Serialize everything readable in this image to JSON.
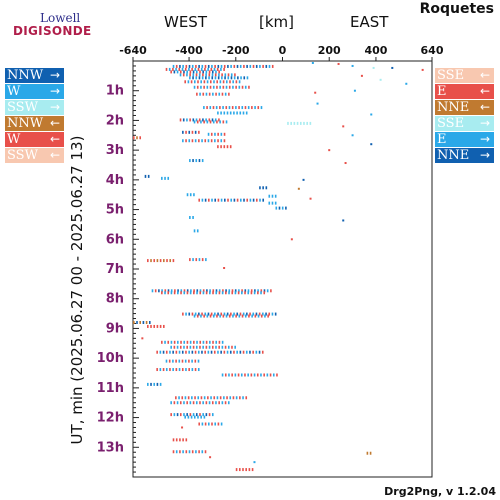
{
  "header": {
    "logo_top": "Lowell",
    "logo_bottom": "DIGISONDE",
    "station": "Roquetes",
    "west_label": "WEST",
    "unit_label": "[km]",
    "east_label": "EAST"
  },
  "footer": {
    "version": "Drg2Png, v 1.2.04"
  },
  "legend_left": [
    {
      "label": "NNW",
      "arrow": "→",
      "color": "#1060b0"
    },
    {
      "label": "W",
      "arrow": "→",
      "color": "#2aa8e8"
    },
    {
      "label": "SSW",
      "arrow": "→",
      "color": "#a8ecf0"
    },
    {
      "label": "NNW",
      "arrow": "←",
      "color": "#c07a30"
    },
    {
      "label": "W",
      "arrow": "←",
      "color": "#e8504a"
    },
    {
      "label": "SSW",
      "arrow": "←",
      "color": "#f8c8b0"
    }
  ],
  "legend_right": [
    {
      "label": "SSE",
      "arrow": "←",
      "color": "#f8c8b0"
    },
    {
      "label": "E",
      "arrow": "←",
      "color": "#e8504a"
    },
    {
      "label": "NNE",
      "arrow": "←",
      "color": "#c07a30"
    },
    {
      "label": "SSE",
      "arrow": "→",
      "color": "#a8ecf0"
    },
    {
      "label": "E",
      "arrow": "→",
      "color": "#2aa8e8"
    },
    {
      "label": "NNE",
      "arrow": "→",
      "color": "#1060b0"
    }
  ],
  "chart_data": {
    "type": "scatter",
    "title": "",
    "xlabel": "[km]",
    "ylabel": "UT, min (2025.06.27 00 - 2025.06.27 13)",
    "xlim": [
      -640,
      640
    ],
    "ylim_minutes": [
      0,
      840
    ],
    "x_ticks": [
      -640,
      -400,
      -200,
      0,
      200,
      400,
      640
    ],
    "x_tick_labels": [
      "-640",
      "-400",
      "-200",
      "0",
      "200",
      "400",
      "640"
    ],
    "y_ticks_min": [
      60,
      120,
      180,
      240,
      300,
      360,
      420,
      480,
      540,
      600,
      660,
      720,
      780
    ],
    "y_tick_labels": [
      "1h",
      "2h",
      "3h",
      "4h",
      "5h",
      "6h",
      "7h",
      "8h",
      "9h",
      "10h",
      "11h",
      "12h",
      "13h"
    ],
    "grid": false,
    "tick_label_color": "#7a1f6e",
    "segments": [
      {
        "t": 10,
        "x1": -470,
        "x2": -40,
        "colors": [
          "#2aa8e8",
          "#e8504a",
          "#1060b0"
        ]
      },
      {
        "t": 16,
        "x1": -500,
        "x2": -250,
        "colors": [
          "#e8504a",
          "#2aa8e8"
        ]
      },
      {
        "t": 21,
        "x1": -480,
        "x2": -270,
        "colors": [
          "#e8504a",
          "#1060b0",
          "#2aa8e8"
        ]
      },
      {
        "t": 27,
        "x1": -440,
        "x2": -200,
        "colors": [
          "#2aa8e8",
          "#e8504a"
        ]
      },
      {
        "t": 33,
        "x1": -400,
        "x2": -140,
        "colors": [
          "#2aa8e8",
          "#1060b0"
        ]
      },
      {
        "t": 41,
        "x1": -420,
        "x2": -180,
        "colors": [
          "#e8504a",
          "#2aa8e8"
        ]
      },
      {
        "t": 52,
        "x1": -380,
        "x2": -140,
        "colors": [
          "#2aa8e8",
          "#e8504a"
        ]
      },
      {
        "t": 66,
        "x1": -370,
        "x2": -230,
        "colors": [
          "#e8504a",
          "#2aa8e8"
        ]
      },
      {
        "t": 93,
        "x1": -340,
        "x2": -80,
        "colors": [
          "#2aa8e8",
          "#e8504a"
        ]
      },
      {
        "t": 104,
        "x1": -280,
        "x2": -150,
        "colors": [
          "#2aa8e8"
        ]
      },
      {
        "t": 118,
        "x1": -440,
        "x2": -270,
        "colors": [
          "#e8504a",
          "#1060b0",
          "#2aa8e8"
        ]
      },
      {
        "t": 122,
        "x1": -380,
        "x2": -230,
        "colors": [
          "#2aa8e8",
          "#e8504a"
        ]
      },
      {
        "t": 125,
        "x1": 20,
        "x2": 120,
        "colors": [
          "#a8ecf0"
        ]
      },
      {
        "t": 143,
        "x1": -430,
        "x2": -360,
        "colors": [
          "#1060b0",
          "#e8504a"
        ]
      },
      {
        "t": 147,
        "x1": -320,
        "x2": -240,
        "colors": [
          "#2aa8e8",
          "#e8504a"
        ]
      },
      {
        "t": 154,
        "x1": -640,
        "x2": -600,
        "colors": [
          "#e8504a",
          "#c07a30"
        ]
      },
      {
        "t": 160,
        "x1": -430,
        "x2": -250,
        "colors": [
          "#2aa8e8",
          "#e8504a"
        ]
      },
      {
        "t": 172,
        "x1": -280,
        "x2": -220,
        "colors": [
          "#e8504a"
        ]
      },
      {
        "t": 200,
        "x1": -400,
        "x2": -340,
        "colors": [
          "#2aa8e8",
          "#1060b0"
        ]
      },
      {
        "t": 232,
        "x1": -590,
        "x2": -570,
        "colors": [
          "#1060b0"
        ]
      },
      {
        "t": 236,
        "x1": -520,
        "x2": -480,
        "colors": [
          "#2aa8e8"
        ]
      },
      {
        "t": 255,
        "x1": -100,
        "x2": -60,
        "colors": [
          "#1060b0"
        ]
      },
      {
        "t": 269,
        "x1": -410,
        "x2": -380,
        "colors": [
          "#2aa8e8"
        ]
      },
      {
        "t": 272,
        "x1": -60,
        "x2": -20,
        "colors": [
          "#2aa8e8"
        ]
      },
      {
        "t": 280,
        "x1": -360,
        "x2": -80,
        "colors": [
          "#e8504a",
          "#2aa8e8",
          "#1060b0"
        ]
      },
      {
        "t": 286,
        "x1": -60,
        "x2": -20,
        "colors": [
          "#2aa8e8"
        ]
      },
      {
        "t": 296,
        "x1": -30,
        "x2": 20,
        "colors": [
          "#2aa8e8",
          "#1060b0"
        ]
      },
      {
        "t": 315,
        "x1": -400,
        "x2": -380,
        "colors": [
          "#2aa8e8"
        ]
      },
      {
        "t": 342,
        "x1": -380,
        "x2": -360,
        "colors": [
          "#2aa8e8"
        ]
      },
      {
        "t": 402,
        "x1": -580,
        "x2": -470,
        "colors": [
          "#e8504a",
          "#c07a30"
        ]
      },
      {
        "t": 400,
        "x1": -400,
        "x2": -320,
        "colors": [
          "#e8504a",
          "#2aa8e8"
        ]
      },
      {
        "t": 463,
        "x1": -560,
        "x2": -40,
        "colors": [
          "#2aa8e8",
          "#e8504a",
          "#1060b0"
        ]
      },
      {
        "t": 467,
        "x1": -520,
        "x2": -80,
        "colors": [
          "#e8504a",
          "#2aa8e8"
        ]
      },
      {
        "t": 510,
        "x1": -430,
        "x2": -20,
        "colors": [
          "#e8504a",
          "#2aa8e8",
          "#1060b0"
        ]
      },
      {
        "t": 514,
        "x1": -380,
        "x2": -60,
        "colors": [
          "#2aa8e8",
          "#e8504a"
        ]
      },
      {
        "t": 527,
        "x1": -640,
        "x2": -560,
        "colors": [
          "#c07a30",
          "#1060b0"
        ]
      },
      {
        "t": 535,
        "x1": -580,
        "x2": -510,
        "colors": [
          "#e8504a"
        ]
      },
      {
        "t": 567,
        "x1": -520,
        "x2": -250,
        "colors": [
          "#e8504a",
          "#2aa8e8"
        ]
      },
      {
        "t": 577,
        "x1": -480,
        "x2": -200,
        "colors": [
          "#2aa8e8",
          "#e8504a"
        ]
      },
      {
        "t": 587,
        "x1": -540,
        "x2": -80,
        "colors": [
          "#e8504a",
          "#2aa8e8",
          "#1060b0"
        ]
      },
      {
        "t": 605,
        "x1": -500,
        "x2": -350,
        "colors": [
          "#2aa8e8",
          "#e8504a"
        ]
      },
      {
        "t": 622,
        "x1": -540,
        "x2": -350,
        "colors": [
          "#e8504a",
          "#2aa8e8"
        ]
      },
      {
        "t": 633,
        "x1": -260,
        "x2": -20,
        "colors": [
          "#2aa8e8",
          "#e8504a"
        ]
      },
      {
        "t": 652,
        "x1": -580,
        "x2": -520,
        "colors": [
          "#2aa8e8",
          "#1060b0"
        ]
      },
      {
        "t": 679,
        "x1": -460,
        "x2": -150,
        "colors": [
          "#e8504a",
          "#2aa8e8"
        ]
      },
      {
        "t": 689,
        "x1": -480,
        "x2": -220,
        "colors": [
          "#2aa8e8",
          "#e8504a"
        ]
      },
      {
        "t": 713,
        "x1": -480,
        "x2": -300,
        "colors": [
          "#e8504a",
          "#2aa8e8",
          "#1060b0"
        ]
      },
      {
        "t": 718,
        "x1": -420,
        "x2": -330,
        "colors": [
          "#2aa8e8"
        ]
      },
      {
        "t": 732,
        "x1": -360,
        "x2": -260,
        "colors": [
          "#e8504a",
          "#2aa8e8"
        ]
      },
      {
        "t": 764,
        "x1": -470,
        "x2": -410,
        "colors": [
          "#e8504a"
        ]
      },
      {
        "t": 788,
        "x1": -470,
        "x2": -320,
        "colors": [
          "#e8504a",
          "#2aa8e8"
        ]
      },
      {
        "t": 791,
        "x1": 360,
        "x2": 380,
        "colors": [
          "#c07a30"
        ]
      },
      {
        "t": 824,
        "x1": -200,
        "x2": -120,
        "colors": [
          "#e8504a"
        ]
      }
    ],
    "points": [
      {
        "t": 4,
        "x": 130,
        "color": "#2aa8e8"
      },
      {
        "t": 6,
        "x": 240,
        "color": "#e8504a"
      },
      {
        "t": 10,
        "x": 300,
        "color": "#2aa8e8"
      },
      {
        "t": 14,
        "x": 390,
        "color": "#a8ecf0"
      },
      {
        "t": 14,
        "x": 470,
        "color": "#1060b0"
      },
      {
        "t": 18,
        "x": 600,
        "color": "#e8504a"
      },
      {
        "t": 30,
        "x": 340,
        "color": "#e8504a"
      },
      {
        "t": 38,
        "x": 420,
        "color": "#a8ecf0"
      },
      {
        "t": 46,
        "x": 530,
        "color": "#2aa8e8"
      },
      {
        "t": 60,
        "x": 310,
        "color": "#2aa8e8"
      },
      {
        "t": 64,
        "x": 140,
        "color": "#e8504a"
      },
      {
        "t": 86,
        "x": 150,
        "color": "#2aa8e8"
      },
      {
        "t": 108,
        "x": 380,
        "color": "#2aa8e8"
      },
      {
        "t": 132,
        "x": 260,
        "color": "#e8504a"
      },
      {
        "t": 150,
        "x": 300,
        "color": "#2aa8e8"
      },
      {
        "t": 168,
        "x": 380,
        "color": "#1060b0"
      },
      {
        "t": 180,
        "x": 200,
        "color": "#e8504a"
      },
      {
        "t": 206,
        "x": 270,
        "color": "#e8504a"
      },
      {
        "t": 240,
        "x": 90,
        "color": "#1060b0"
      },
      {
        "t": 258,
        "x": 70,
        "color": "#c07a30"
      },
      {
        "t": 278,
        "x": 120,
        "color": "#e8504a"
      },
      {
        "t": 322,
        "x": 260,
        "color": "#1060b0"
      },
      {
        "t": 360,
        "x": 40,
        "color": "#e8504a"
      },
      {
        "t": 418,
        "x": -250,
        "color": "#e8504a"
      },
      {
        "t": 560,
        "x": -600,
        "color": "#e8504a"
      },
      {
        "t": 740,
        "x": -430,
        "color": "#e8504a"
      },
      {
        "t": 800,
        "x": -310,
        "color": "#e8504a"
      },
      {
        "t": 810,
        "x": -120,
        "color": "#2aa8e8"
      }
    ]
  }
}
